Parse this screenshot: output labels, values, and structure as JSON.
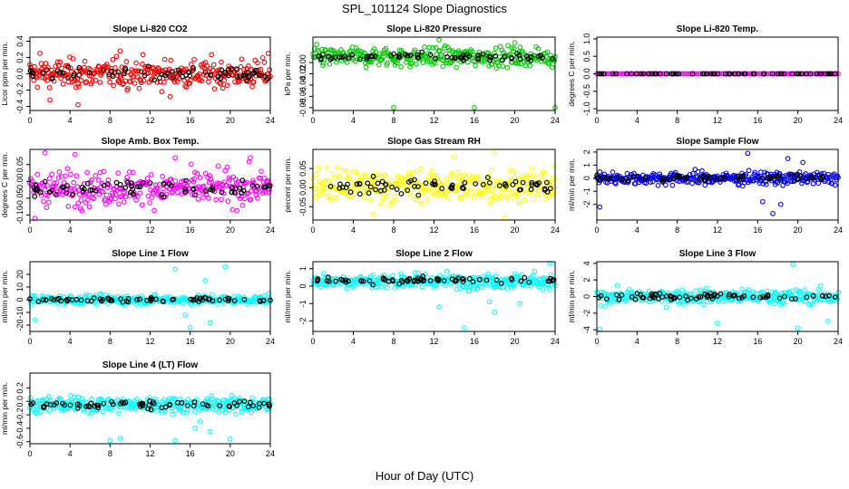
{
  "title": "SPL_101124  Slope Diagnostics",
  "xlabel": "Hour of Day (UTC)",
  "chart_data": [
    {
      "type": "scatter",
      "title": "Slope Li-820 CO2",
      "ylabel": "Licor ppm per min.",
      "xlim": [
        0,
        24
      ],
      "xticks": [
        0,
        4,
        8,
        12,
        16,
        20,
        24
      ],
      "ylim": [
        -0.45,
        0.45
      ],
      "yticks": [
        -0.4,
        -0.2,
        0.0,
        0.2,
        0.4
      ],
      "yticklabels": [
        "-0.4",
        "-0.2",
        "0.0",
        "0.2",
        "0.4"
      ],
      "color": "#ff0000",
      "center": 0.0,
      "spread": 0.12,
      "outliers": [
        [
          2.0,
          -0.32
        ],
        [
          4.8,
          -0.38
        ],
        [
          14.0,
          -0.28
        ],
        [
          23.8,
          0.25
        ],
        [
          1.0,
          0.25
        ],
        [
          9.0,
          0.28
        ]
      ]
    },
    {
      "type": "scatter",
      "title": "Slope Li-820 Pressure",
      "ylabel": "kPa per min.",
      "xlim": [
        0,
        24
      ],
      "xticks": [
        0,
        4,
        8,
        12,
        16,
        20,
        24
      ],
      "ylim": [
        -0.085,
        0.045
      ],
      "yticks": [
        -0.08,
        -0.06,
        -0.04,
        -0.02,
        0.0
      ],
      "yticklabels": [
        "-0.08",
        "-0.06",
        "-0.04",
        "-0.02",
        "0.00"
      ],
      "color": "#00cc00",
      "center": 0.01,
      "spread": 0.012,
      "outliers": [
        [
          8.0,
          -0.08
        ],
        [
          16.0,
          -0.08
        ],
        [
          24.0,
          -0.08
        ],
        [
          12.5,
          0.04
        ],
        [
          20.0,
          0.035
        ]
      ]
    },
    {
      "type": "scatter",
      "title": "Slope Li-820 Temp.",
      "ylabel": "degrees C per min.",
      "xlim": [
        0,
        24
      ],
      "xticks": [
        0,
        4,
        8,
        12,
        16,
        20,
        24
      ],
      "ylim": [
        -1.05,
        1.05
      ],
      "yticks": [
        -1.0,
        -0.5,
        0.0,
        0.5,
        1.0
      ],
      "yticklabels": [
        "-1.0",
        "-0.5",
        "0.0",
        "0.5",
        "1.0"
      ],
      "color": "#ff00ff",
      "center": 0.0,
      "spread": 0.0,
      "outliers": []
    },
    {
      "type": "scatter",
      "title": "Slope Amb. Box Temp.",
      "ylabel": "degrees C per min.",
      "xlim": [
        0,
        24
      ],
      "xticks": [
        0,
        4,
        8,
        12,
        16,
        20,
        24
      ],
      "ylim": [
        -0.115,
        0.095
      ],
      "yticks": [
        -0.1,
        -0.05,
        0.0,
        0.05
      ],
      "yticklabels": [
        "-0.10",
        "-0.05",
        "0.00",
        "0.05"
      ],
      "color": "#ff00ff",
      "center": -0.02,
      "spread": 0.035,
      "outliers": [
        [
          1.5,
          0.085
        ],
        [
          4.5,
          0.08
        ],
        [
          14.5,
          0.07
        ],
        [
          22.0,
          0.07
        ],
        [
          0.5,
          -0.11
        ]
      ]
    },
    {
      "type": "scatter",
      "title": "Slope Gas Stream RH",
      "ylabel": "percent per min.",
      "xlim": [
        0,
        24
      ],
      "xticks": [
        0,
        4,
        8,
        12,
        16,
        20,
        24
      ],
      "ylim": [
        -0.085,
        0.1
      ],
      "yticks": [
        -0.05,
        0.0,
        0.05
      ],
      "yticklabels": [
        "-0.05",
        "0.00",
        "0.05"
      ],
      "color": "#ffff00",
      "center": 0.005,
      "spread": 0.03,
      "outliers": [
        [
          18.0,
          0.09
        ],
        [
          19.0,
          -0.08
        ],
        [
          6.0,
          -0.07
        ],
        [
          14.0,
          0.08
        ]
      ]
    },
    {
      "type": "scatter",
      "title": "Slope Sample Flow",
      "ylabel": "ml/min per min.",
      "xlim": [
        0,
        24
      ],
      "xticks": [
        0,
        4,
        8,
        12,
        16,
        20,
        24
      ],
      "ylim": [
        -3.2,
        2.2
      ],
      "yticks": [
        -2,
        -1,
        0,
        1,
        2
      ],
      "yticklabels": [
        "-2",
        "-1",
        "0",
        "1",
        "2"
      ],
      "color": "#0000ff",
      "center": 0.0,
      "spread": 0.35,
      "outliers": [
        [
          15.0,
          1.9
        ],
        [
          19.0,
          1.5
        ],
        [
          17.5,
          -2.7
        ],
        [
          18.3,
          -2.0
        ],
        [
          16.5,
          -1.8
        ],
        [
          0.3,
          -2.2
        ],
        [
          20.5,
          1.2
        ]
      ]
    },
    {
      "type": "scatter",
      "title": "Slope Line 1 Flow",
      "ylabel": "ml/min per min.",
      "xlim": [
        0,
        24
      ],
      "xticks": [
        0,
        4,
        8,
        12,
        16,
        20,
        24
      ],
      "ylim": [
        -25,
        30
      ],
      "yticks": [
        -20,
        -10,
        0,
        10,
        20
      ],
      "yticklabels": [
        "-20",
        "-10",
        "0",
        "10",
        "20"
      ],
      "color": "#00ffff",
      "center": 0.0,
      "spread": 2.5,
      "outliers": [
        [
          14.5,
          24
        ],
        [
          19.5,
          26
        ],
        [
          16.0,
          -22
        ],
        [
          18.0,
          -18
        ],
        [
          17.5,
          15
        ],
        [
          0.5,
          -16
        ],
        [
          15.5,
          -12
        ]
      ]
    },
    {
      "type": "scatter",
      "title": "Slope Line 2 Flow",
      "ylabel": "ml/min per min.",
      "xlim": [
        0,
        24
      ],
      "xticks": [
        0,
        4,
        8,
        12,
        16,
        20,
        24
      ],
      "ylim": [
        -2.6,
        1.4
      ],
      "yticks": [
        -2,
        -1,
        0,
        1
      ],
      "yticklabels": [
        "-2",
        "-1",
        "0",
        "1"
      ],
      "color": "#00ffff",
      "center": 0.3,
      "spread": 0.3,
      "outliers": [
        [
          15.0,
          -2.4
        ],
        [
          18.0,
          -1.5
        ],
        [
          23.5,
          1.3
        ],
        [
          20.5,
          -1.0
        ],
        [
          12.5,
          -1.2
        ],
        [
          17.5,
          -0.9
        ]
      ]
    },
    {
      "type": "scatter",
      "title": "Slope Line 3 Flow",
      "ylabel": "ml/min per min.",
      "xlim": [
        0,
        24
      ],
      "xticks": [
        0,
        4,
        8,
        12,
        16,
        20,
        24
      ],
      "ylim": [
        -4.2,
        4.2
      ],
      "yticks": [
        -4,
        -2,
        0,
        2,
        4
      ],
      "yticklabels": [
        "-4",
        "-2",
        "0",
        "2",
        "4"
      ],
      "color": "#00ffff",
      "center": 0.0,
      "spread": 0.6,
      "outliers": [
        [
          19.5,
          3.9
        ],
        [
          20.0,
          -3.8
        ],
        [
          0.3,
          -3.9
        ],
        [
          12.0,
          -3.2
        ],
        [
          23.0,
          -3.0
        ]
      ]
    },
    {
      "type": "scatter",
      "title": "Slope Line 4 (LT) Flow",
      "ylabel": "ml/min per min.",
      "xlim": [
        0,
        24
      ],
      "xticks": [
        0,
        4,
        8,
        12,
        16,
        20,
        24
      ],
      "ylim": [
        -0.63,
        0.42
      ],
      "yticks": [
        -0.6,
        -0.4,
        -0.2,
        0.0,
        0.2
      ],
      "yticklabels": [
        "-0.6",
        "-0.4",
        "-0.2",
        "0.0",
        "0.2"
      ],
      "color": "#00ffff",
      "center": -0.05,
      "spread": 0.08,
      "outliers": [
        [
          14.5,
          -0.58
        ],
        [
          9.0,
          -0.55
        ],
        [
          8.0,
          -0.58
        ],
        [
          16.5,
          -0.4
        ],
        [
          18.0,
          -0.45
        ],
        [
          20.0,
          -0.56
        ],
        [
          17.0,
          -0.3
        ]
      ]
    }
  ]
}
